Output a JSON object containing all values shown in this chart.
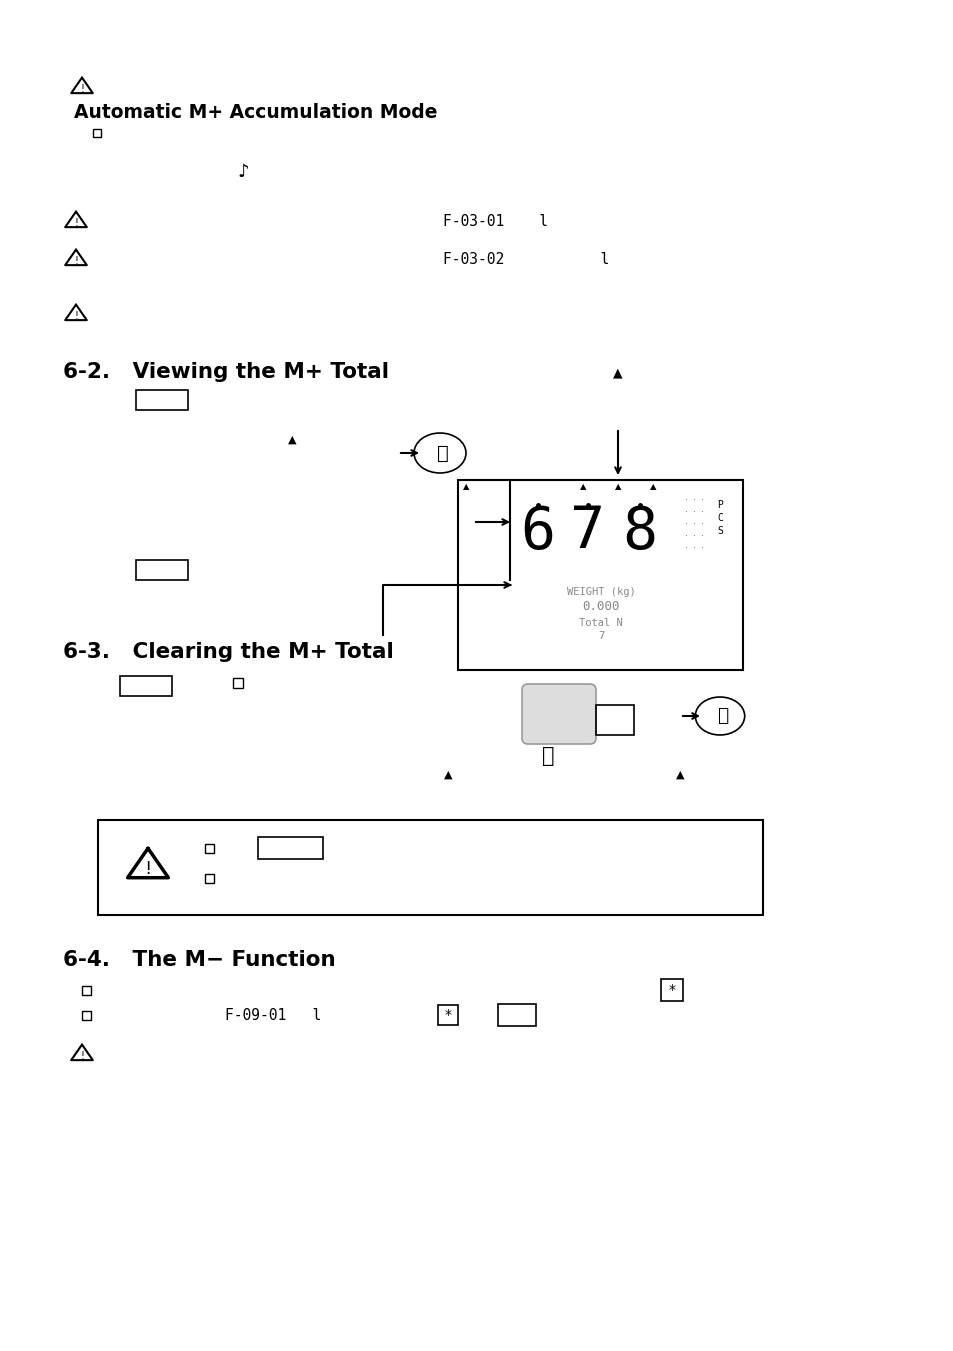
{
  "bg_color": "#ffffff",
  "title_auto": "Automatic M+ Accumulation Mode",
  "section_62": "6-2.   Viewing the M+ Total",
  "section_63": "6-3.   Clearing the M+ Total",
  "section_64": "6-4.   The M− Function",
  "code_f0301": "F-03-01    l",
  "code_f0302": "F-03-02           l",
  "code_f0901": "F-09-01   l",
  "display_weight": "WEIGHT (kg)",
  "display_val": "0.000",
  "display_total": "Total N",
  "display_num": "7"
}
